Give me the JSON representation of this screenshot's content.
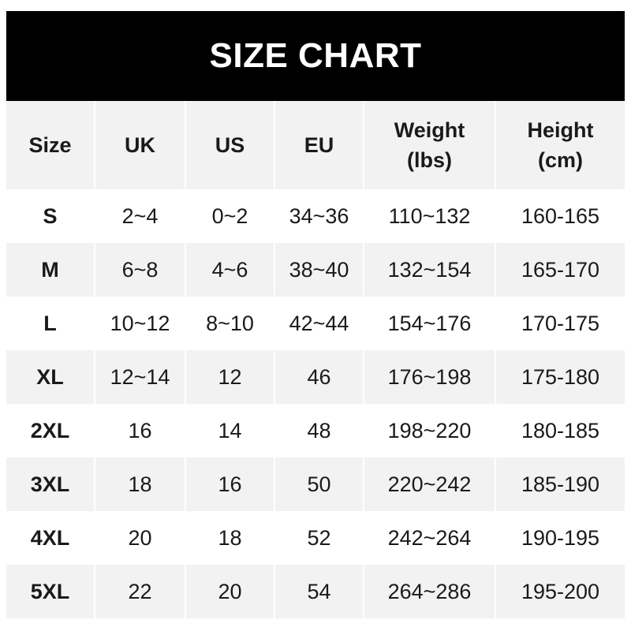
{
  "title": "SIZE CHART",
  "headers": [
    "Size",
    "UK",
    "US",
    "EU",
    "Weight\n(lbs)",
    "Height\n(cm)"
  ],
  "header_lines": [
    [
      "Size"
    ],
    [
      "UK"
    ],
    [
      "US"
    ],
    [
      "EU"
    ],
    [
      "Weight",
      "(lbs)"
    ],
    [
      "Height",
      "(cm)"
    ]
  ],
  "rows": [
    [
      "S",
      "2~4",
      "0~2",
      "34~36",
      "110~132",
      "160-165"
    ],
    [
      "M",
      "6~8",
      "4~6",
      "38~40",
      "132~154",
      "165-170"
    ],
    [
      "L",
      "10~12",
      "8~10",
      "42~44",
      "154~176",
      "170-175"
    ],
    [
      "XL",
      "12~14",
      "12",
      "46",
      "176~198",
      "175-180"
    ],
    [
      "2XL",
      "16",
      "14",
      "48",
      "198~220",
      "180-185"
    ],
    [
      "3XL",
      "18",
      "16",
      "50",
      "220~242",
      "185-190"
    ],
    [
      "4XL",
      "20",
      "18",
      "52",
      "242~264",
      "190-195"
    ],
    [
      "5XL",
      "22",
      "20",
      "54",
      "264~286",
      "195-200"
    ]
  ],
  "colors": {
    "header_bg": "#000000",
    "alt_row_bg": "#f2f2f2",
    "text": "#1a1a1a"
  }
}
